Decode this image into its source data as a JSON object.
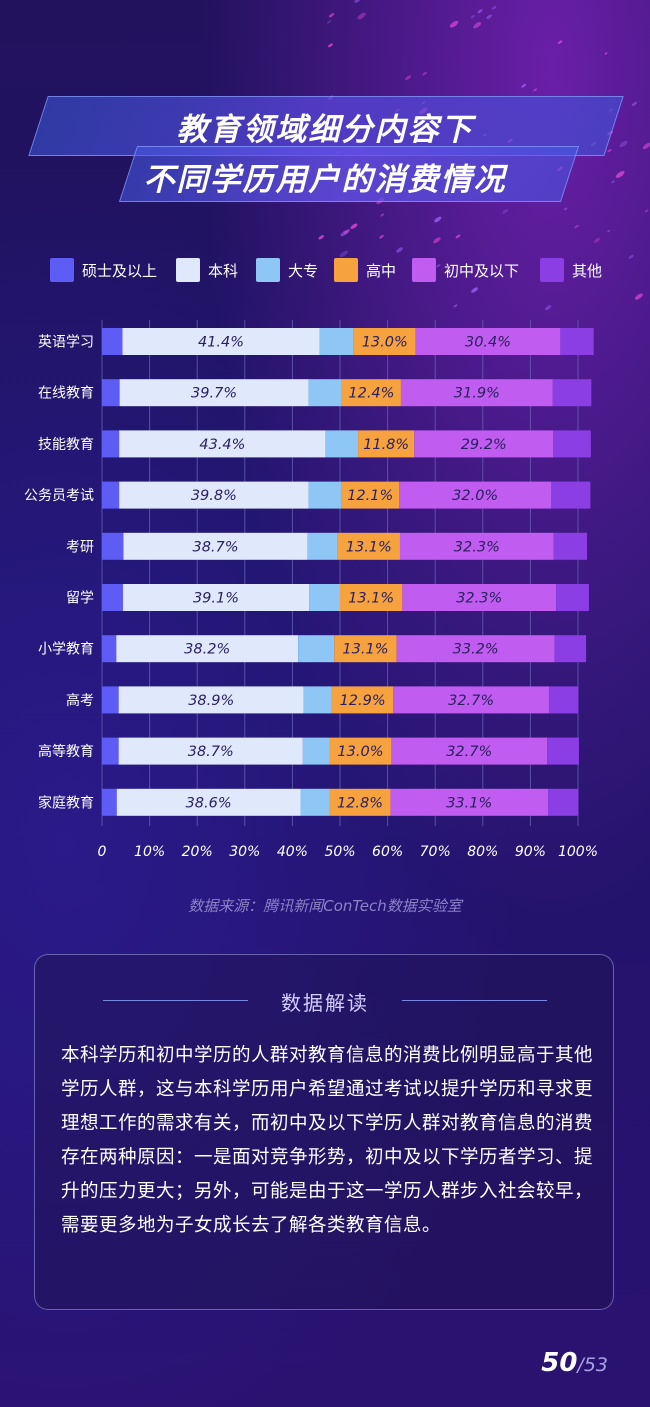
{
  "title": {
    "line1": "教育领域细分内容下",
    "line2": "不同学历用户的消费情况"
  },
  "colors": {
    "硕士及以上": "#5d5cf5",
    "本科": "#dfe9fb",
    "大专": "#8ec7f5",
    "高中": "#f6a33f",
    "初中及以下": "#c05cf0",
    "其他": "#8a3ee4"
  },
  "chart_data": {
    "type": "bar",
    "orientation": "horizontal",
    "stacked": true,
    "categories": [
      "英语学习",
      "在线教育",
      "技能教育",
      "公务员考试",
      "考研",
      "留学",
      "小学教育",
      "高考",
      "高等教育",
      "家庭教育"
    ],
    "series": [
      {
        "name": "硕士及以上",
        "values": [
          4.3,
          3.7,
          3.6,
          3.6,
          4.5,
          4.4,
          3.0,
          3.5,
          3.5,
          3.1
        ]
      },
      {
        "name": "本科",
        "values": [
          41.4,
          39.7,
          43.4,
          39.8,
          38.7,
          39.1,
          38.2,
          38.9,
          38.7,
          38.6
        ]
      },
      {
        "name": "大专",
        "values": [
          7.2,
          7.0,
          6.8,
          6.9,
          6.3,
          6.5,
          7.6,
          5.9,
          5.6,
          6.1
        ]
      },
      {
        "name": "高中",
        "values": [
          13.0,
          12.4,
          11.8,
          12.1,
          13.1,
          13.1,
          13.1,
          12.9,
          13.0,
          12.8
        ]
      },
      {
        "name": "初中及以下",
        "values": [
          30.4,
          31.9,
          29.2,
          32.0,
          32.3,
          32.3,
          33.2,
          32.7,
          32.7,
          33.1
        ]
      },
      {
        "name": "其他",
        "values": [
          7.0,
          8.1,
          7.9,
          8.2,
          7.0,
          6.9,
          6.6,
          6.2,
          6.7,
          6.4
        ]
      }
    ],
    "labeled_series": [
      "本科",
      "高中",
      "初中及以下"
    ],
    "xlim": [
      0,
      100
    ],
    "xticks": [
      "0",
      "10%",
      "20%",
      "30%",
      "40%",
      "50%",
      "60%",
      "70%",
      "80%",
      "90%",
      "100%"
    ],
    "legend": "top"
  },
  "source": "数据来源：腾讯新闻ConTech数据实验室",
  "interpretation": {
    "title": "数据解读",
    "text": "本科学历和初中学历的人群对教育信息的消费比例明显高于其他学历人群，这与本科学历用户希望通过考试以提升学历和寻求更理想工作的需求有关，而初中及以下学历人群对教育信息的消费存在两种原因：一是面对竞争形势，初中及以下学历者学习、提升的压力更大；另外，可能是由于这一学历人群步入社会较早，需要更多地为子女成长去了解各类教育信息。"
  },
  "page": {
    "current": "50",
    "total": "/53"
  }
}
